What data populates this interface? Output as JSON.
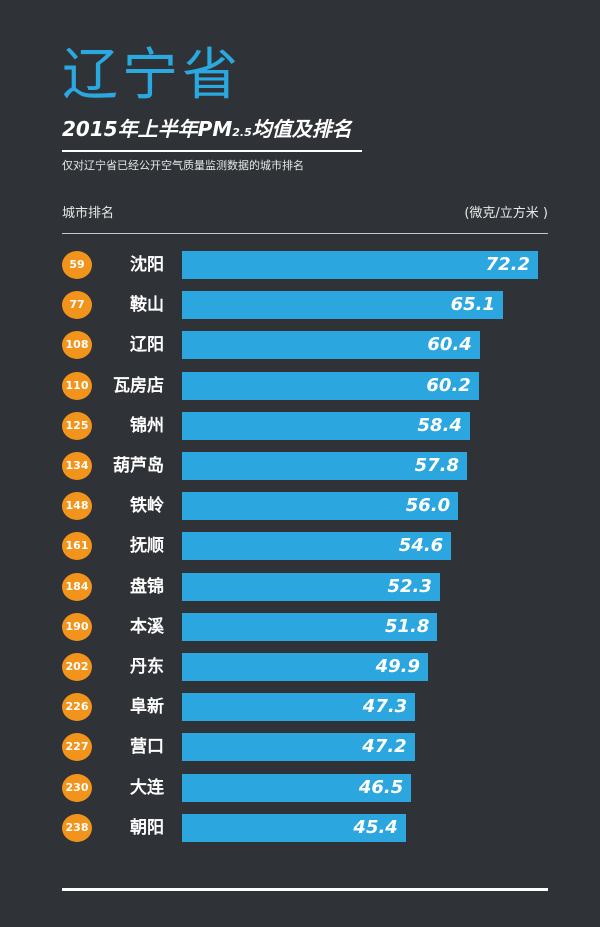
{
  "header": {
    "province": "辽宁省",
    "title_main": "2015年上半年PM",
    "title_sub": "2.5",
    "title_tail": "均值及排名",
    "note": "仅对辽宁省已经公开空气质量监测数据的城市排名",
    "col_rank": "城市排名",
    "col_unit": "(微克/立方米 )"
  },
  "colors": {
    "background": "#2f3237",
    "bar": "#2ba6df",
    "badge": "#f2941b",
    "province_title": "#2aa8e0"
  },
  "chart_data": {
    "type": "bar",
    "orientation": "horizontal",
    "ylabel": "城市排名",
    "unit": "(微克/立方米 )",
    "categories": [
      "沈阳",
      "鞍山",
      "辽阳",
      "瓦房店",
      "锦州",
      "葫芦岛",
      "铁岭",
      "抚顺",
      "盘锦",
      "本溪",
      "丹东",
      "阜新",
      "营口",
      "大连",
      "朝阳"
    ],
    "ranks": [
      59,
      77,
      108,
      110,
      125,
      134,
      148,
      161,
      184,
      190,
      202,
      226,
      227,
      230,
      238
    ],
    "rank_labels": [
      "59",
      "77",
      "108",
      "110",
      "125",
      "134",
      "148",
      "161",
      "184",
      "190",
      "202",
      "226",
      "227",
      "230",
      "238"
    ],
    "values": [
      72.2,
      65.1,
      60.4,
      60.2,
      58.4,
      57.8,
      56.0,
      54.6,
      52.3,
      51.8,
      49.9,
      47.3,
      47.2,
      46.5,
      45.4
    ],
    "value_labels": [
      "72.2",
      "65.1",
      "60.4",
      "60.2",
      "58.4",
      "57.8",
      "56.0",
      "54.6",
      "52.3",
      "51.8",
      "49.9",
      "47.3",
      "47.2",
      "46.5",
      "45.4"
    ],
    "xlim": [
      0,
      72.2
    ]
  }
}
